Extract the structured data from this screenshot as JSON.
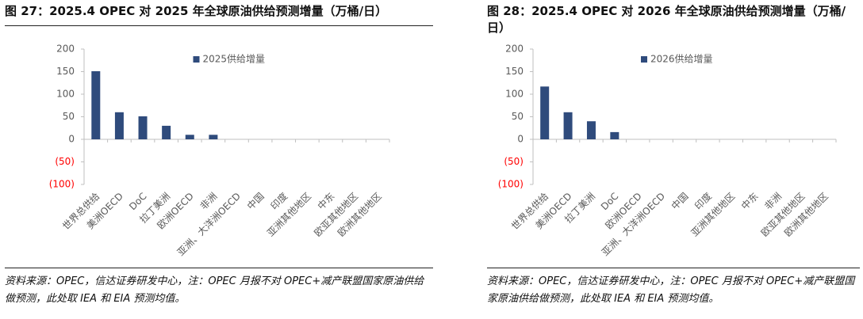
{
  "chart_data": [
    {
      "type": "bar",
      "title": "图 27：2025.4 OPEC 对 2025 年全球原油供给预测增量（万桶/日）",
      "categories": [
        "世界总供给",
        "美洲OECD",
        "DoC",
        "拉丁美洲",
        "欧洲OECD",
        "非洲",
        "亚洲、大洋洲OECD",
        "中国",
        "印度",
        "亚洲其他地区",
        "中东",
        "欧亚其他地区",
        "欧洲其他地区"
      ],
      "series": [
        {
          "name": "2025供给增量",
          "color": "#2f4b7c",
          "values": [
            151,
            60,
            51,
            30,
            10,
            10,
            0,
            0,
            0,
            0,
            0,
            0,
            0
          ]
        }
      ],
      "ylim": [
        -100,
        200
      ],
      "yticks": [
        {
          "value": -100,
          "label": "(100)"
        },
        {
          "value": -50,
          "label": "(50)"
        },
        0,
        50,
        100,
        150,
        200
      ],
      "negative_tick_color": "#ff0000",
      "legend": "upper center",
      "note": "资料来源：OPEC，信达证券研发中心，注：OPEC 月报不对 OPEC+减产联盟国家原油供给做预测，此处取 IEA 和 EIA 预测均值。"
    },
    {
      "type": "bar",
      "title": "图 28：2025.4 OPEC 对 2026 年全球原油供给预测增量（万桶/日）",
      "categories": [
        "世界总供给",
        "美洲OECD",
        "拉丁美洲",
        "DoC",
        "欧洲OECD",
        "亚洲、大洋洲OECD",
        "中国",
        "印度",
        "亚洲其他地区",
        "中东",
        "非洲",
        "欧亚其他地区",
        "欧洲其他地区"
      ],
      "series": [
        {
          "name": "2026供给增量",
          "color": "#2f4b7c",
          "values": [
            117,
            60,
            40,
            16,
            0,
            0,
            0,
            0,
            0,
            0,
            0,
            0,
            0
          ]
        }
      ],
      "ylim": [
        -100,
        200
      ],
      "yticks": [
        {
          "value": -100,
          "label": "(100)"
        },
        {
          "value": -50,
          "label": "(50)"
        },
        0,
        50,
        100,
        150,
        200
      ],
      "negative_tick_color": "#ff0000",
      "legend": "upper center",
      "note": "资料来源：OPEC，信达证券研发中心，注：OPEC 月报不对 OPEC+减产联盟国家原油供给做预测，此处取 IEA 和 EIA 预测均值。"
    }
  ]
}
